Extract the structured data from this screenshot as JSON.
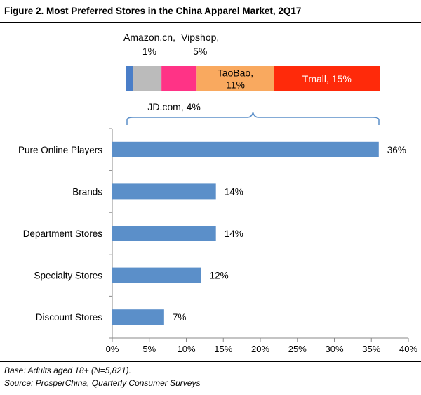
{
  "header": {
    "title": "Figure 2. Most Preferred Stores in the China Apparel Market, 2Q17"
  },
  "footer": {
    "base": "Base: Adults aged 18+ (N=5,821).",
    "source": "Source:  ProsperChina, Quarterly Consumer Surveys"
  },
  "colors": {
    "bar": "#5B8FC9",
    "amazon": "#4A7EC8",
    "jd": "#BBBBBB",
    "vipshop": "#FF3386",
    "taobao": "#F9A95F",
    "tmall": "#FF2A0A",
    "brace": "#5B8FC9"
  },
  "chart_data": {
    "type": "bar",
    "orientation": "horizontal",
    "title": "Most Preferred Stores in the China Apparel Market, 2Q17",
    "categories": [
      "Pure Online Players",
      "Brands",
      "Department Stores",
      "Specialty Stores",
      "Discount Stores"
    ],
    "values": [
      36,
      14,
      14,
      12,
      7
    ],
    "value_labels": [
      "36%",
      "14%",
      "14%",
      "12%",
      "7%"
    ],
    "xlim": [
      0,
      40
    ],
    "xticks": [
      0,
      5,
      10,
      15,
      20,
      25,
      30,
      35,
      40
    ],
    "xtick_labels": [
      "0%",
      "5%",
      "10%",
      "15%",
      "20%",
      "25%",
      "30%",
      "35%",
      "40%"
    ],
    "grid": false,
    "breakdown_of": "Pure Online Players",
    "breakdown": [
      {
        "name": "Amazon.cn",
        "value": 1,
        "label_lines": [
          "Amazon.cn,",
          "1%"
        ],
        "color_key": "amazon",
        "label_pos": "above"
      },
      {
        "name": "JD.com",
        "value": 4,
        "label_lines": [
          "JD.com, 4%"
        ],
        "color_key": "jd",
        "label_pos": "below"
      },
      {
        "name": "Vipshop",
        "value": 5,
        "label_lines": [
          "Vipshop,",
          "5%"
        ],
        "color_key": "vipshop",
        "label_pos": "above"
      },
      {
        "name": "TaoBao",
        "value": 11,
        "label_lines": [
          "TaoBao,",
          "11%"
        ],
        "color_key": "taobao",
        "label_pos": "inside"
      },
      {
        "name": "Tmall",
        "value": 15,
        "label_lines": [
          "Tmall, 15%"
        ],
        "color_key": "tmall",
        "label_pos": "inside"
      }
    ]
  }
}
